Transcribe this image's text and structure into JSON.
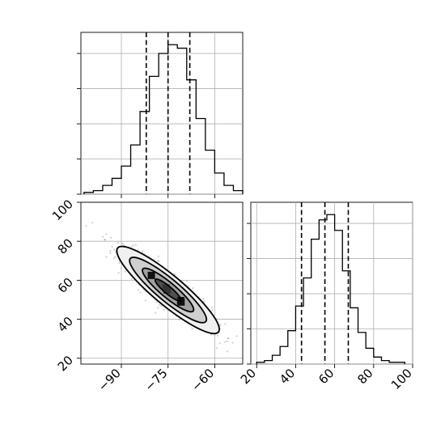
{
  "chart_data": {
    "type": "corner",
    "title": "",
    "parameters": [
      "",
      ""
    ],
    "panels": [
      {
        "kind": "histogram",
        "param": 0,
        "bin_edges": [
          -102,
          -99,
          -96,
          -93,
          -90,
          -87,
          -84,
          -81,
          -78,
          -75,
          -72,
          -69,
          -66,
          -63,
          -60,
          -57,
          -54,
          -51
        ],
        "counts": [
          1,
          2,
          5,
          9,
          16,
          28,
          47,
          67,
          80,
          85,
          83,
          65,
          43,
          25,
          12,
          5,
          2
        ],
        "quantiles": [
          -82.0,
          -75.0,
          -68.0
        ],
        "xlim": [
          -103,
          -51
        ],
        "ylim": [
          0,
          92
        ],
        "ytick_values": [
          0,
          20,
          40,
          60,
          80
        ],
        "xticks_shown": false
      },
      {
        "kind": "histogram",
        "param": 1,
        "bin_edges": [
          20,
          24,
          28,
          32,
          36,
          40,
          44,
          48,
          52,
          56,
          60,
          64,
          68,
          72,
          76,
          80,
          84,
          88,
          92,
          96
        ],
        "counts": [
          1,
          2,
          5,
          10,
          19,
          33,
          49,
          71,
          82,
          85,
          76,
          53,
          32,
          18,
          9,
          4,
          2,
          1,
          1
        ],
        "quantiles": [
          43.0,
          55.0,
          67.0
        ],
        "xlim": [
          17,
          100
        ],
        "xticks": [
          20,
          40,
          60,
          80,
          100
        ],
        "xtick_labels": [
          "20",
          "40",
          "60",
          "80",
          "100"
        ],
        "ylim": [
          0,
          92
        ],
        "ytick_values": [
          0,
          20,
          40,
          60,
          80
        ]
      },
      {
        "kind": "2d-density",
        "x_param": 0,
        "y_param": 1,
        "xlim": [
          -103,
          -51
        ],
        "ylim": [
          17,
          100
        ],
        "xticks": [
          -90,
          -75,
          -60
        ],
        "xtick_labels": [
          "−90",
          "−75",
          "−60"
        ],
        "yticks": [
          20,
          40,
          60,
          80,
          100
        ],
        "ytick_labels": [
          "20",
          "40",
          "60",
          "80",
          "100"
        ],
        "center": [
          -75,
          55
        ],
        "std": [
          7,
          9.5
        ],
        "correlation": -0.9,
        "contour_levels_sigma": [
          0.5,
          1.0,
          1.5,
          2.0
        ],
        "grid": true
      }
    ],
    "grid": true
  }
}
